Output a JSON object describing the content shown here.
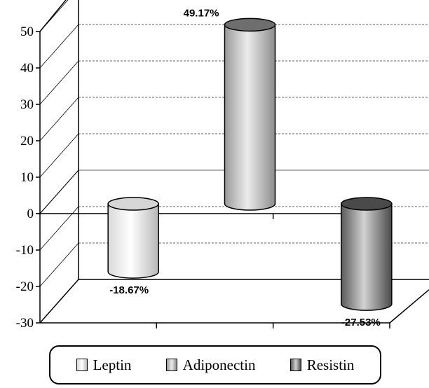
{
  "chart_data": {
    "type": "bar",
    "style": "3d-cylinder",
    "categories": [
      "Leptin",
      "Adiponectin",
      "Resistin"
    ],
    "values": [
      -18.67,
      49.17,
      -27.53
    ],
    "data_labels": [
      "-18.67%",
      "49.17%",
      "-27.53%"
    ],
    "ylim": [
      -30,
      50
    ],
    "yticks": [
      "50",
      "40",
      "30",
      "20",
      "10",
      "0",
      "-10",
      "-20",
      "-30"
    ],
    "grid": true,
    "legend": {
      "placement": "bottom",
      "entries": [
        "Leptin",
        "Adiponectin",
        "Resistin"
      ]
    },
    "colors": [
      "#e6e6e6",
      "#c4c4c4",
      "#8a8a8a"
    ]
  }
}
